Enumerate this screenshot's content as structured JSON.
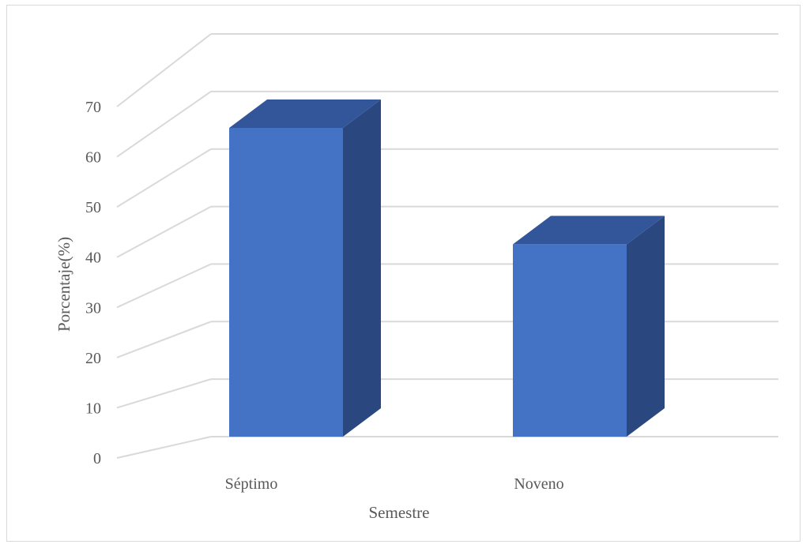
{
  "chart_data": {
    "type": "bar",
    "style": "3d-column",
    "categories": [
      "Séptimo",
      "Noveno"
    ],
    "values": [
      61,
      38
    ],
    "xlabel": "Semestre",
    "ylabel": "Porcentaje(%)",
    "ylim": [
      0,
      70
    ],
    "yticks": [
      0,
      10,
      20,
      30,
      40,
      50,
      60,
      70
    ],
    "grid": true,
    "legend": "none",
    "colors": {
      "front": "#4472c4",
      "top": "#33569a",
      "side": "#2a4780",
      "grid": "#d9d9d9",
      "text": "#595959"
    }
  }
}
